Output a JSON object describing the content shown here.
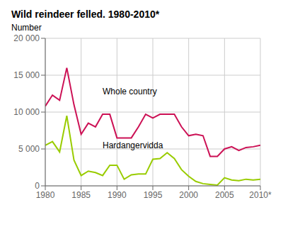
{
  "chart_data": {
    "type": "line",
    "title": "Wild reindeer felled. 1980-2010*",
    "ylabel": "Number",
    "x": [
      1980,
      1981,
      1982,
      1983,
      1984,
      1985,
      1986,
      1987,
      1988,
      1989,
      1990,
      1991,
      1992,
      1993,
      1994,
      1995,
      1996,
      1997,
      1998,
      1999,
      2000,
      2001,
      2002,
      2003,
      2004,
      2005,
      2006,
      2007,
      2008,
      2009,
      2010
    ],
    "series": [
      {
        "name": "Whole country",
        "color": "#cc1155",
        "values": [
          10800,
          12300,
          11600,
          16000,
          11000,
          7000,
          8500,
          8000,
          9700,
          9700,
          6500,
          6500,
          6500,
          8000,
          9700,
          9200,
          9700,
          9700,
          9700,
          8000,
          6800,
          7000,
          6800,
          4000,
          4000,
          5000,
          5300,
          4800,
          5200,
          5300,
          5500
        ]
      },
      {
        "name": "Hardangervidda",
        "color": "#99cc00",
        "values": [
          5500,
          6000,
          4600,
          9500,
          3500,
          1400,
          2000,
          1800,
          1400,
          2800,
          2800,
          900,
          1500,
          1600,
          1600,
          3600,
          3700,
          4500,
          3700,
          2200,
          1300,
          600,
          300,
          200,
          100,
          1100,
          800,
          700,
          900,
          800,
          900
        ]
      }
    ],
    "annotations": [
      {
        "text": "Whole country",
        "x": 1987.5,
        "y": 12800
      },
      {
        "text": "Hardangervidda",
        "x": 1987.5,
        "y": 5500
      }
    ],
    "xlim": [
      1980,
      2010
    ],
    "xticks": [
      1980,
      1985,
      1990,
      1995,
      2000,
      2005,
      {
        "value": 2010,
        "label": "2010*"
      }
    ],
    "ylim": [
      0,
      20000
    ],
    "yticks": [
      0,
      {
        "value": 5000,
        "label": "5 000"
      },
      {
        "value": 10000,
        "label": "10 000"
      },
      {
        "value": 15000,
        "label": "15 000"
      },
      {
        "value": 20000,
        "label": "20 000"
      }
    ],
    "grid": true
  }
}
